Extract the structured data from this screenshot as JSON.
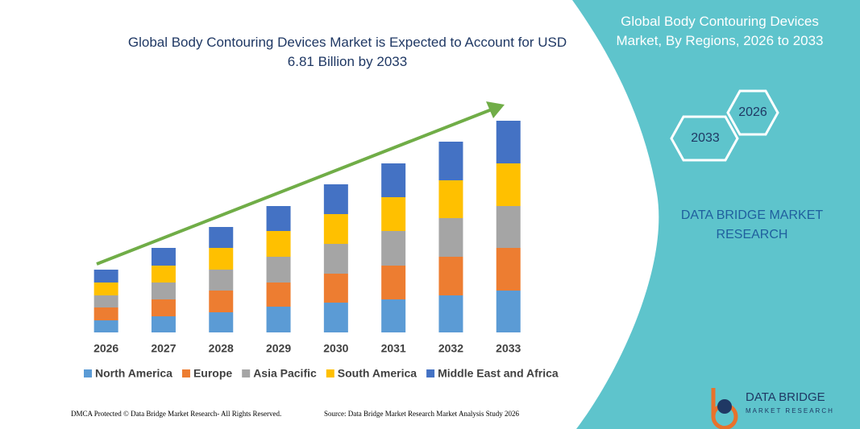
{
  "chart_data": {
    "type": "stacked_bar",
    "title": "Global Body Contouring Devices Market is Expected to Account for USD 6.81 Billion by 2033",
    "categories": [
      "2026",
      "2027",
      "2028",
      "2029",
      "2030",
      "2031",
      "2032",
      "2033"
    ],
    "series": [
      {
        "name": "North America",
        "color": "#5b9bd5",
        "values": [
          15,
          20,
          25,
          32,
          37,
          41,
          46,
          52
        ]
      },
      {
        "name": "Europe",
        "color": "#ed7d31",
        "values": [
          16,
          21,
          27,
          30,
          36,
          42,
          48,
          53
        ]
      },
      {
        "name": "Asia Pacific",
        "color": "#a5a5a5",
        "values": [
          15,
          21,
          26,
          32,
          37,
          43,
          48,
          52
        ]
      },
      {
        "name": "South America",
        "color": "#ffc000",
        "values": [
          16,
          21,
          27,
          32,
          37,
          42,
          47,
          53
        ]
      },
      {
        "name": "Middle East and Africa",
        "color": "#4472c4",
        "values": [
          16,
          22,
          26,
          31,
          37,
          42,
          48,
          53
        ]
      }
    ],
    "ylim": [
      0,
      263
    ],
    "legend": "bottom"
  },
  "panel": {
    "title": "Global Body Contouring Devices Market, By Regions, 2026 to 2033",
    "hex_top": "2026",
    "hex_bottom": "2033",
    "brand": "DATA BRIDGE MARKET RESEARCH"
  },
  "logo": {
    "name": "DATA BRIDGE",
    "tagline": "MARKET RESEARCH"
  },
  "footer": {
    "left": "DMCA Protected © Data Bridge Market Research- All Rights Reserved.",
    "right": "Source: Data Bridge Market Research Market Analysis Study 2026"
  }
}
